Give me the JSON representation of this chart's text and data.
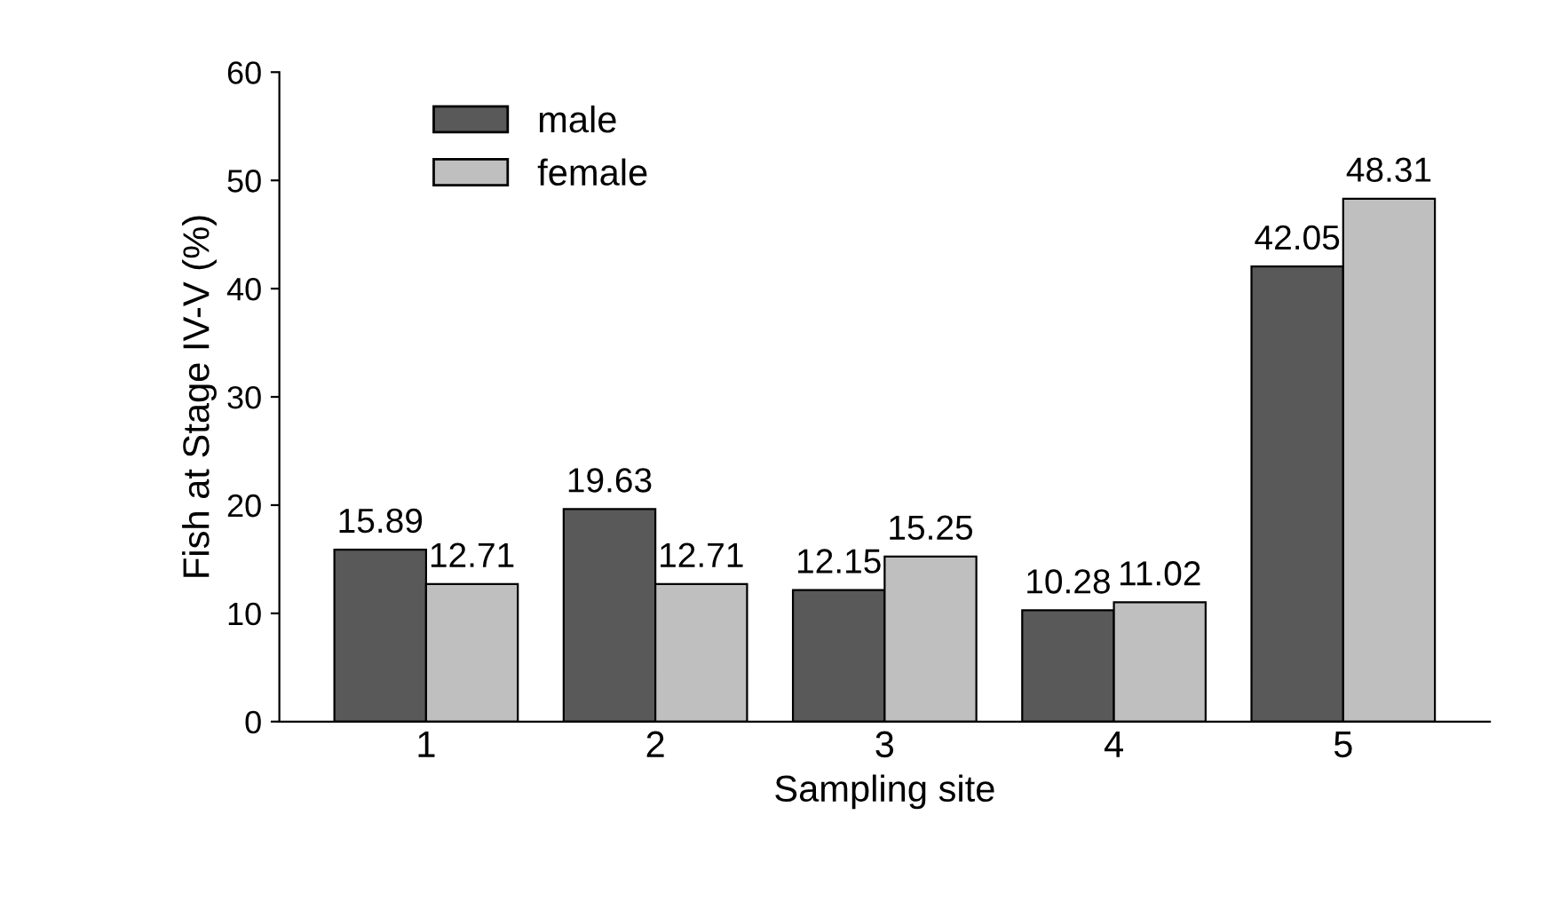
{
  "chart_data": {
    "type": "bar",
    "xlabel": "Sampling site",
    "ylabel": "Fish at Stage IV-V (%)",
    "categories": [
      "1",
      "2",
      "3",
      "4",
      "5"
    ],
    "series": [
      {
        "name": "male",
        "color": "#595959",
        "values": [
          15.89,
          19.63,
          12.15,
          10.28,
          42.05
        ]
      },
      {
        "name": "female",
        "color": "#bfbfbf",
        "values": [
          12.71,
          12.71,
          15.25,
          11.02,
          48.31
        ]
      }
    ],
    "ylim": [
      0,
      60
    ],
    "yticks": [
      0,
      10,
      20,
      30,
      40,
      50,
      60
    ],
    "grid": false,
    "legend": "top left",
    "data_labels": true
  }
}
